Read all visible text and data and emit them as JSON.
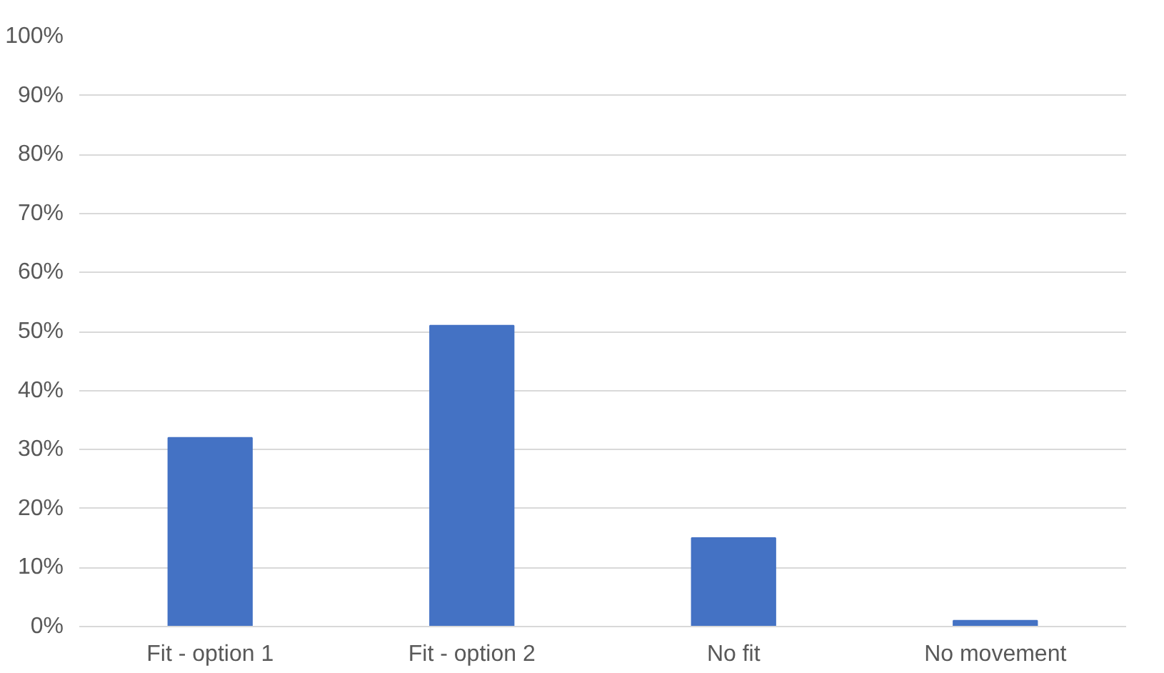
{
  "chart_data": {
    "type": "bar",
    "categories": [
      "Fit - option 1",
      "Fit - option 2",
      "No fit",
      "No movement"
    ],
    "values": [
      32,
      51,
      15,
      1
    ],
    "color": "#4472c4",
    "ylim": [
      0,
      100
    ],
    "yticks": [
      {
        "value": 0,
        "label": "0%"
      },
      {
        "value": 10,
        "label": "10%"
      },
      {
        "value": 20,
        "label": "20%"
      },
      {
        "value": 30,
        "label": "30%"
      },
      {
        "value": 40,
        "label": "40%"
      },
      {
        "value": 50,
        "label": "50%"
      },
      {
        "value": 60,
        "label": "60%"
      },
      {
        "value": 70,
        "label": "70%"
      },
      {
        "value": 80,
        "label": "80%"
      },
      {
        "value": 90,
        "label": "90%"
      },
      {
        "value": 100,
        "label": "100%"
      }
    ],
    "grid": "y"
  }
}
